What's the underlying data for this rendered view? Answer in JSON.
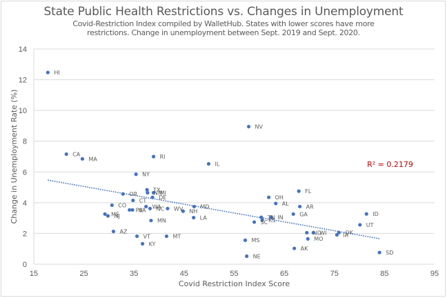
{
  "chart_data": {
    "type": "scatter",
    "title": "State Public Health Restrictions vs. Changes in Unemployment",
    "subtitle": "Covid-Restriction Index compiled by WalletHub. States with lower scores have more restrictions. Change in unemployment between Sept. 2019 and Sept. 2020.",
    "xlabel": "Covid Restriction Index Score",
    "ylabel": "Change in Unemployment Rate (%)",
    "xlim": [
      15,
      95
    ],
    "ylim": [
      0,
      14
    ],
    "xticks": [
      15,
      25,
      35,
      45,
      55,
      65,
      75,
      85,
      95
    ],
    "yticks": [
      0,
      2,
      4,
      6,
      8,
      10,
      12,
      14
    ],
    "grid": "horizontal",
    "colors": {
      "points": "#4472C4",
      "trendline": "#4472C4",
      "r2": "#C00000",
      "text": "#595959",
      "grid": "#d9d9d9"
    },
    "trendline": {
      "type": "linear",
      "x_start": 17.8,
      "y_start": 5.47,
      "x_end": 84.0,
      "y_end": 1.66,
      "r2_label": "R² = 0.2179",
      "r2_x": 84,
      "r2_y": 6.5
    },
    "points": [
      {
        "label": "HI",
        "x": 17.8,
        "y": 12.47
      },
      {
        "label": "CA",
        "x": 21.5,
        "y": 7.16
      },
      {
        "label": "MA",
        "x": 24.7,
        "y": 6.85
      },
      {
        "label": "RI",
        "x": 38.9,
        "y": 7.0
      },
      {
        "label": "NY",
        "x": 35.4,
        "y": 5.85
      },
      {
        "label": "IL",
        "x": 49.9,
        "y": 6.53
      },
      {
        "label": "NV",
        "x": 57.9,
        "y": 8.95
      },
      {
        "label": "TX",
        "x": 37.6,
        "y": 4.84
      },
      {
        "label": "NM",
        "x": 37.7,
        "y": 4.65
      },
      {
        "label": "MI",
        "x": 38.9,
        "y": 4.65
      },
      {
        "label": "OR",
        "x": 32.8,
        "y": 4.57
      },
      {
        "label": "DE",
        "x": 38.7,
        "y": 4.35
      },
      {
        "label": "CT",
        "x": 34.8,
        "y": 4.15
      },
      {
        "label": "CO",
        "x": 30.6,
        "y": 3.84
      },
      {
        "label": "PA",
        "x": 34.1,
        "y": 3.53
      },
      {
        "label": "VA",
        "x": 34.7,
        "y": 3.53
      },
      {
        "label": "WA",
        "x": 37.4,
        "y": 3.75
      },
      {
        "label": "NC",
        "x": 38.2,
        "y": 3.62
      },
      {
        "label": "WV",
        "x": 41.7,
        "y": 3.62
      },
      {
        "label": "MD",
        "x": 47.0,
        "y": 3.75
      },
      {
        "label": "NH",
        "x": 44.8,
        "y": 3.45
      },
      {
        "label": "LA",
        "x": 46.9,
        "y": 3.03
      },
      {
        "label": "ME",
        "x": 29.2,
        "y": 3.26
      },
      {
        "label": "NJ",
        "x": 29.8,
        "y": 3.14
      },
      {
        "label": "MN",
        "x": 38.4,
        "y": 2.84
      },
      {
        "label": "AZ",
        "x": 30.9,
        "y": 2.13
      },
      {
        "label": "VT",
        "x": 35.6,
        "y": 1.82
      },
      {
        "label": "MT",
        "x": 41.5,
        "y": 1.82
      },
      {
        "label": "KY",
        "x": 36.7,
        "y": 1.33
      },
      {
        "label": "FL",
        "x": 67.9,
        "y": 4.75
      },
      {
        "label": "OH",
        "x": 61.9,
        "y": 4.35
      },
      {
        "label": "AL",
        "x": 63.3,
        "y": 3.95
      },
      {
        "label": "AR",
        "x": 68.1,
        "y": 3.75
      },
      {
        "label": "GA",
        "x": 66.8,
        "y": 3.26
      },
      {
        "label": "TN",
        "x": 60.4,
        "y": 3.05
      },
      {
        "label": "KS",
        "x": 60.6,
        "y": 2.87
      },
      {
        "label": "IN",
        "x": 62.4,
        "y": 3.05
      },
      {
        "label": "SC",
        "x": 59.0,
        "y": 2.74
      },
      {
        "label": "ND",
        "x": 69.5,
        "y": 2.05
      },
      {
        "label": "WI",
        "x": 70.8,
        "y": 2.05
      },
      {
        "label": "MO",
        "x": 69.7,
        "y": 1.65
      },
      {
        "label": "OK",
        "x": 75.9,
        "y": 2.06
      },
      {
        "label": "IA",
        "x": 75.5,
        "y": 1.91
      },
      {
        "label": "MS",
        "x": 57.2,
        "y": 1.56
      },
      {
        "label": "AK",
        "x": 67.0,
        "y": 1.03
      },
      {
        "label": "NE",
        "x": 57.5,
        "y": 0.52
      },
      {
        "label": "ID",
        "x": 81.4,
        "y": 3.27
      },
      {
        "label": "UT",
        "x": 80.1,
        "y": 2.56
      },
      {
        "label": "SD",
        "x": 84.0,
        "y": 0.76
      }
    ]
  }
}
